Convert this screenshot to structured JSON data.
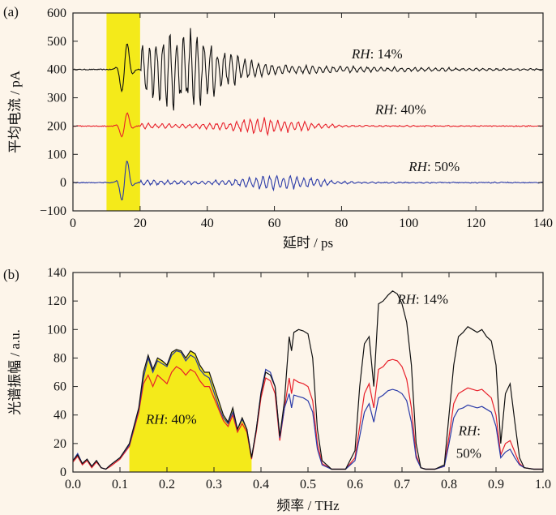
{
  "chart_data": [
    {
      "panel_label": "(a)",
      "type": "line",
      "xlabel": "延时 / ps",
      "ylabel": "平均电流 / pA",
      "xlim": [
        0,
        140
      ],
      "ylim": [
        -100,
        600
      ],
      "xticks": [
        "0",
        "20",
        "40",
        "60",
        "80",
        "100",
        "120",
        "140"
      ],
      "yticks": [
        "−100",
        "0",
        "100",
        "200",
        "300",
        "400",
        "500",
        "600"
      ],
      "highlight_band": {
        "x_range": [
          10,
          20
        ],
        "color": "#f4ea1a"
      },
      "series": [
        {
          "name": "RH: 14%",
          "color": "#111111",
          "offset": 400,
          "pulse_amplitude": 110,
          "echo_amplitude": 140,
          "echo_peak_x": 33,
          "echo_peak_y": 565
        },
        {
          "name": "RH: 40%",
          "color": "#e8202a",
          "offset": 200,
          "pulse_amplitude": 55,
          "echo_amplitude": 30,
          "echo_peak_x": 58,
          "echo_peak_y": 240
        },
        {
          "name": "RH: 50%",
          "color": "#2a3aa8",
          "offset": 0,
          "pulse_amplitude": 90,
          "echo_amplitude": 28,
          "echo_peak_x": 62,
          "echo_peak_y": 35
        }
      ],
      "annotations": [
        {
          "label": "RH",
          "value": ": 14%",
          "x": 83,
          "y": 440
        },
        {
          "label": "RH",
          "value": ": 40%",
          "x": 90,
          "y": 243
        },
        {
          "label": "RH",
          "value": ": 50%",
          "x": 100,
          "y": 40
        }
      ]
    },
    {
      "panel_label": "(b)",
      "type": "line",
      "xlabel": "频率 / THz",
      "ylabel": "光谱振幅 / a.u.",
      "xlim": [
        0,
        1.0
      ],
      "ylim": [
        0,
        140
      ],
      "xticks": [
        "0.0",
        "0.1",
        "0.2",
        "0.3",
        "0.4",
        "0.5",
        "0.6",
        "0.7",
        "0.8",
        "0.9",
        "1.0"
      ],
      "yticks": [
        "0",
        "20",
        "40",
        "60",
        "80",
        "100",
        "120",
        "140"
      ],
      "series": [
        {
          "name": "RH: 14%",
          "color": "#111111",
          "x": [
            0,
            0.01,
            0.02,
            0.03,
            0.04,
            0.05,
            0.06,
            0.07,
            0.08,
            0.1,
            0.12,
            0.14,
            0.15,
            0.16,
            0.17,
            0.18,
            0.19,
            0.2,
            0.21,
            0.22,
            0.23,
            0.24,
            0.25,
            0.26,
            0.27,
            0.28,
            0.29,
            0.3,
            0.31,
            0.32,
            0.33,
            0.34,
            0.35,
            0.36,
            0.37,
            0.38,
            0.39,
            0.4,
            0.41,
            0.42,
            0.43,
            0.44,
            0.45,
            0.46,
            0.465,
            0.47,
            0.48,
            0.49,
            0.5,
            0.51,
            0.52,
            0.53,
            0.55,
            0.58,
            0.6,
            0.61,
            0.62,
            0.63,
            0.64,
            0.65,
            0.66,
            0.67,
            0.68,
            0.69,
            0.7,
            0.71,
            0.72,
            0.73,
            0.74,
            0.75,
            0.77,
            0.79,
            0.8,
            0.81,
            0.82,
            0.83,
            0.84,
            0.85,
            0.86,
            0.87,
            0.88,
            0.89,
            0.9,
            0.91,
            0.92,
            0.93,
            0.94,
            0.95,
            0.96,
            0.98,
            1.0
          ],
          "y": [
            8,
            12,
            6,
            9,
            4,
            8,
            3,
            2,
            5,
            10,
            20,
            45,
            70,
            82,
            72,
            80,
            78,
            75,
            84,
            86,
            85,
            80,
            85,
            83,
            75,
            70,
            70,
            60,
            50,
            40,
            35,
            45,
            30,
            38,
            30,
            10,
            30,
            55,
            70,
            68,
            60,
            25,
            50,
            95,
            85,
            98,
            100,
            99,
            97,
            80,
            30,
            8,
            2,
            2,
            15,
            60,
            90,
            95,
            60,
            118,
            120,
            124,
            127,
            125,
            118,
            105,
            75,
            20,
            3,
            2,
            2,
            5,
            40,
            75,
            95,
            98,
            102,
            100,
            98,
            100,
            95,
            92,
            75,
            20,
            55,
            62,
            35,
            10,
            3,
            2,
            2
          ]
        },
        {
          "name": "RH: 40%",
          "color": "#e8202a",
          "x": [
            0,
            0.01,
            0.02,
            0.03,
            0.04,
            0.05,
            0.06,
            0.07,
            0.08,
            0.1,
            0.12,
            0.14,
            0.15,
            0.16,
            0.17,
            0.18,
            0.19,
            0.2,
            0.21,
            0.22,
            0.23,
            0.24,
            0.25,
            0.26,
            0.27,
            0.28,
            0.29,
            0.3,
            0.31,
            0.32,
            0.33,
            0.34,
            0.35,
            0.36,
            0.37,
            0.38,
            0.39,
            0.4,
            0.41,
            0.42,
            0.43,
            0.44,
            0.45,
            0.46,
            0.465,
            0.47,
            0.48,
            0.49,
            0.5,
            0.51,
            0.52,
            0.53,
            0.55,
            0.58,
            0.6,
            0.61,
            0.62,
            0.63,
            0.64,
            0.65,
            0.66,
            0.67,
            0.68,
            0.69,
            0.7,
            0.71,
            0.72,
            0.73,
            0.74,
            0.75,
            0.77,
            0.79,
            0.8,
            0.81,
            0.82,
            0.83,
            0.84,
            0.85,
            0.86,
            0.87,
            0.88,
            0.89,
            0.9,
            0.91,
            0.92,
            0.93,
            0.94,
            0.95,
            0.96,
            0.98,
            1.0
          ],
          "y": [
            7,
            11,
            5,
            8,
            3,
            7,
            3,
            2,
            4,
            9,
            18,
            42,
            62,
            68,
            60,
            68,
            65,
            62,
            70,
            74,
            72,
            68,
            72,
            70,
            64,
            60,
            60,
            52,
            44,
            36,
            32,
            40,
            28,
            34,
            28,
            9,
            28,
            52,
            66,
            64,
            55,
            22,
            45,
            66,
            55,
            65,
            63,
            62,
            60,
            50,
            20,
            6,
            2,
            2,
            10,
            32,
            55,
            62,
            45,
            72,
            74,
            78,
            79,
            78,
            74,
            65,
            45,
            12,
            3,
            2,
            2,
            4,
            25,
            48,
            55,
            57,
            59,
            58,
            57,
            58,
            55,
            52,
            40,
            12,
            20,
            22,
            14,
            6,
            3,
            2,
            2
          ]
        },
        {
          "name": "RH: 50%",
          "color": "#2a3aa8",
          "x": [
            0,
            0.01,
            0.02,
            0.03,
            0.04,
            0.05,
            0.06,
            0.07,
            0.08,
            0.1,
            0.12,
            0.14,
            0.15,
            0.16,
            0.17,
            0.18,
            0.19,
            0.2,
            0.21,
            0.22,
            0.23,
            0.24,
            0.25,
            0.26,
            0.27,
            0.28,
            0.29,
            0.3,
            0.31,
            0.32,
            0.33,
            0.34,
            0.35,
            0.36,
            0.37,
            0.38,
            0.39,
            0.4,
            0.41,
            0.42,
            0.43,
            0.44,
            0.45,
            0.46,
            0.465,
            0.47,
            0.48,
            0.49,
            0.5,
            0.51,
            0.52,
            0.53,
            0.55,
            0.58,
            0.6,
            0.61,
            0.62,
            0.63,
            0.64,
            0.65,
            0.66,
            0.67,
            0.68,
            0.69,
            0.7,
            0.71,
            0.72,
            0.73,
            0.74,
            0.75,
            0.77,
            0.79,
            0.8,
            0.81,
            0.82,
            0.83,
            0.84,
            0.85,
            0.86,
            0.87,
            0.88,
            0.89,
            0.9,
            0.91,
            0.92,
            0.93,
            0.94,
            0.95,
            0.96,
            0.98,
            1.0
          ],
          "y": [
            8,
            13,
            6,
            9,
            4,
            8,
            3,
            2,
            5,
            10,
            19,
            44,
            66,
            80,
            70,
            78,
            76,
            74,
            82,
            85,
            84,
            78,
            82,
            80,
            72,
            68,
            66,
            56,
            46,
            38,
            34,
            42,
            30,
            37,
            30,
            10,
            30,
            56,
            72,
            70,
            60,
            24,
            45,
            55,
            45,
            54,
            53,
            52,
            50,
            42,
            16,
            5,
            2,
            2,
            8,
            25,
            42,
            48,
            35,
            52,
            54,
            57,
            58,
            57,
            55,
            50,
            35,
            10,
            3,
            2,
            2,
            4,
            20,
            38,
            44,
            45,
            47,
            46,
            45,
            46,
            44,
            42,
            32,
            10,
            14,
            16,
            10,
            5,
            3,
            2,
            2
          ]
        }
      ],
      "highlight_fill": {
        "of_series": "RH: 14%",
        "x_range": [
          0.12,
          0.38
        ],
        "color": "#f4ea1a"
      },
      "annotations": [
        {
          "label": "RH",
          "value": ": 14%",
          "x": 0.69,
          "y": 118
        },
        {
          "label": "RH",
          "value": ": 40%",
          "x": 0.155,
          "y": 34
        },
        {
          "label": "RH",
          "value": ":",
          "x": 0.82,
          "y": 26
        },
        {
          "label": "",
          "value": "50%",
          "x": 0.815,
          "y": 10
        }
      ]
    }
  ]
}
